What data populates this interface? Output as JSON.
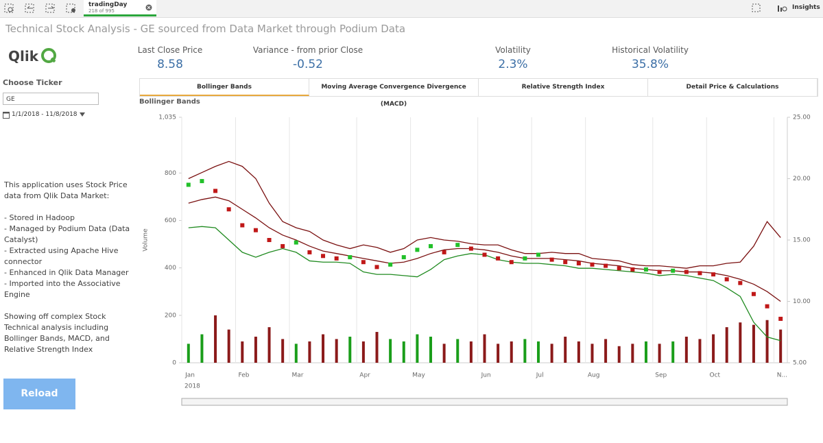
{
  "toolbar": {
    "selection_field": "tradingDay",
    "selection_count": "218 of 995",
    "insights": "Insights"
  },
  "header": {
    "title": "Technical Stock Analysis - GE sourced from Data Market through Podium Data"
  },
  "logo": {
    "text": "Qlik"
  },
  "kpis": [
    {
      "label": "Last Close Price",
      "value": "8.58"
    },
    {
      "label": "Variance - from prior Close",
      "value": "-0.52"
    },
    {
      "label": "Volatility",
      "value": "2.3%"
    },
    {
      "label": "Historical Volatility",
      "value": "35.8%"
    }
  ],
  "tabs": [
    "Bollinger Bands",
    "Moving Average Convergence Divergence (MACD)",
    "Relative Strength Index",
    "Detail Price & Calculations"
  ],
  "sidebar": {
    "ticker_label": "Choose Ticker",
    "ticker_value": "GE",
    "date_range": "1/1/2018 - 11/8/2018",
    "intro": "This application uses Stock Price data from Qlik Data Market:",
    "items": [
      "- Stored in Hadoop",
      "- Managed by Podium Data (Data Catalyst)",
      "- Extracted using Apache Hive connector",
      "- Enhanced in Qlik Data Manager",
      "- Imported into the Associative Engine"
    ],
    "outro": "Showing off complex Stock Technical analysis including Bollinger Bands, MACD, and Relative Strength Index",
    "button": "Reload"
  },
  "chart_data": {
    "type": "bollinger",
    "title": "Bollinger Bands",
    "ylabel": "Volume",
    "xlabel": "2018",
    "categories": [
      "Jan",
      null,
      null,
      null,
      "Feb",
      null,
      null,
      null,
      "Mar",
      null,
      null,
      null,
      null,
      "Apr",
      null,
      null,
      null,
      "May",
      null,
      null,
      null,
      null,
      "Jun",
      null,
      null,
      null,
      "Jul",
      null,
      null,
      null,
      "Aug",
      null,
      null,
      null,
      null,
      "Sep",
      null,
      null,
      null,
      "Oct",
      null,
      null,
      null,
      null,
      "N..."
    ],
    "ylim": [
      0,
      1035
    ],
    "yticks": [
      0,
      200,
      400,
      600,
      800,
      {
        "value": 1035,
        "label": "1,035"
      }
    ],
    "y2lim": [
      5,
      25
    ],
    "y2ticks": [
      {
        "value": 5,
        "label": "5.00"
      },
      {
        "value": 10,
        "label": "10.00"
      },
      {
        "value": 15,
        "label": "15.00"
      },
      {
        "value": 20,
        "label": "20.00"
      },
      {
        "value": 25,
        "label": "25.00"
      }
    ],
    "up_color": "#1a9e1a",
    "down_color": "#8b1a1a",
    "volume": [
      80,
      120,
      200,
      140,
      90,
      110,
      150,
      100,
      80,
      90,
      120,
      100,
      110,
      90,
      130,
      100,
      90,
      120,
      110,
      80,
      100,
      90,
      120,
      80,
      90,
      100,
      90,
      80,
      110,
      90,
      80,
      100,
      70,
      80,
      90,
      80,
      90,
      110,
      100,
      120,
      150,
      170,
      160,
      180,
      140
    ],
    "close": {
      "axis": "y2",
      "values": [
        19.5,
        19.8,
        19.0,
        17.5,
        16.2,
        15.8,
        15.0,
        14.5,
        14.8,
        14.0,
        13.7,
        13.5,
        13.6,
        13.2,
        12.8,
        13.0,
        13.6,
        14.2,
        14.5,
        14.0,
        14.6,
        14.3,
        13.8,
        13.5,
        13.2,
        13.5,
        13.8,
        13.4,
        13.2,
        13.1,
        13.0,
        12.9,
        12.7,
        12.6,
        12.6,
        12.4,
        12.5,
        12.4,
        12.3,
        12.2,
        11.8,
        11.5,
        10.6,
        9.6,
        8.58
      ]
    },
    "series": [
      {
        "color": "#7a1010",
        "axis": "y2",
        "values": [
          18.0,
          18.3,
          18.5,
          18.2,
          17.5,
          16.8,
          16.0,
          15.4,
          15.0,
          14.5,
          14.1,
          13.9,
          13.7,
          13.5,
          13.3,
          13.1,
          13.2,
          13.5,
          13.9,
          14.2,
          14.3,
          14.3,
          14.2,
          14.0,
          13.7,
          13.5,
          13.5,
          13.5,
          13.4,
          13.3,
          13.1,
          13.0,
          12.9,
          12.7,
          12.6,
          12.5,
          12.5,
          12.4,
          12.4,
          12.3,
          12.1,
          11.8,
          11.4,
          10.8,
          10.0
        ]
      },
      {
        "color": "#7a1010",
        "axis": "y2",
        "values": [
          20.0,
          20.5,
          21.0,
          21.4,
          21.0,
          20.0,
          18.0,
          16.5,
          16.0,
          15.7,
          15.0,
          14.6,
          14.3,
          14.6,
          14.4,
          14.0,
          14.3,
          15.0,
          15.2,
          15.0,
          14.9,
          14.7,
          14.6,
          14.6,
          14.2,
          13.9,
          13.9,
          14.0,
          13.9,
          13.9,
          13.5,
          13.4,
          13.3,
          13.0,
          12.9,
          12.9,
          12.8,
          12.7,
          12.9,
          12.9,
          13.1,
          13.2,
          14.5,
          16.5,
          15.2
        ]
      },
      {
        "color": "#1f8a1f",
        "axis": "y2",
        "values": [
          16.0,
          16.1,
          16.0,
          15.0,
          14.0,
          13.6,
          14.0,
          14.3,
          14.0,
          13.3,
          13.2,
          13.2,
          13.1,
          12.4,
          12.2,
          12.2,
          12.1,
          12.0,
          12.6,
          13.4,
          13.7,
          13.9,
          13.8,
          13.4,
          13.2,
          13.1,
          13.1,
          13.0,
          12.9,
          12.7,
          12.7,
          12.6,
          12.5,
          12.4,
          12.3,
          12.1,
          12.2,
          12.1,
          11.9,
          11.7,
          11.1,
          10.4,
          8.3,
          7.1,
          6.8
        ]
      }
    ]
  }
}
